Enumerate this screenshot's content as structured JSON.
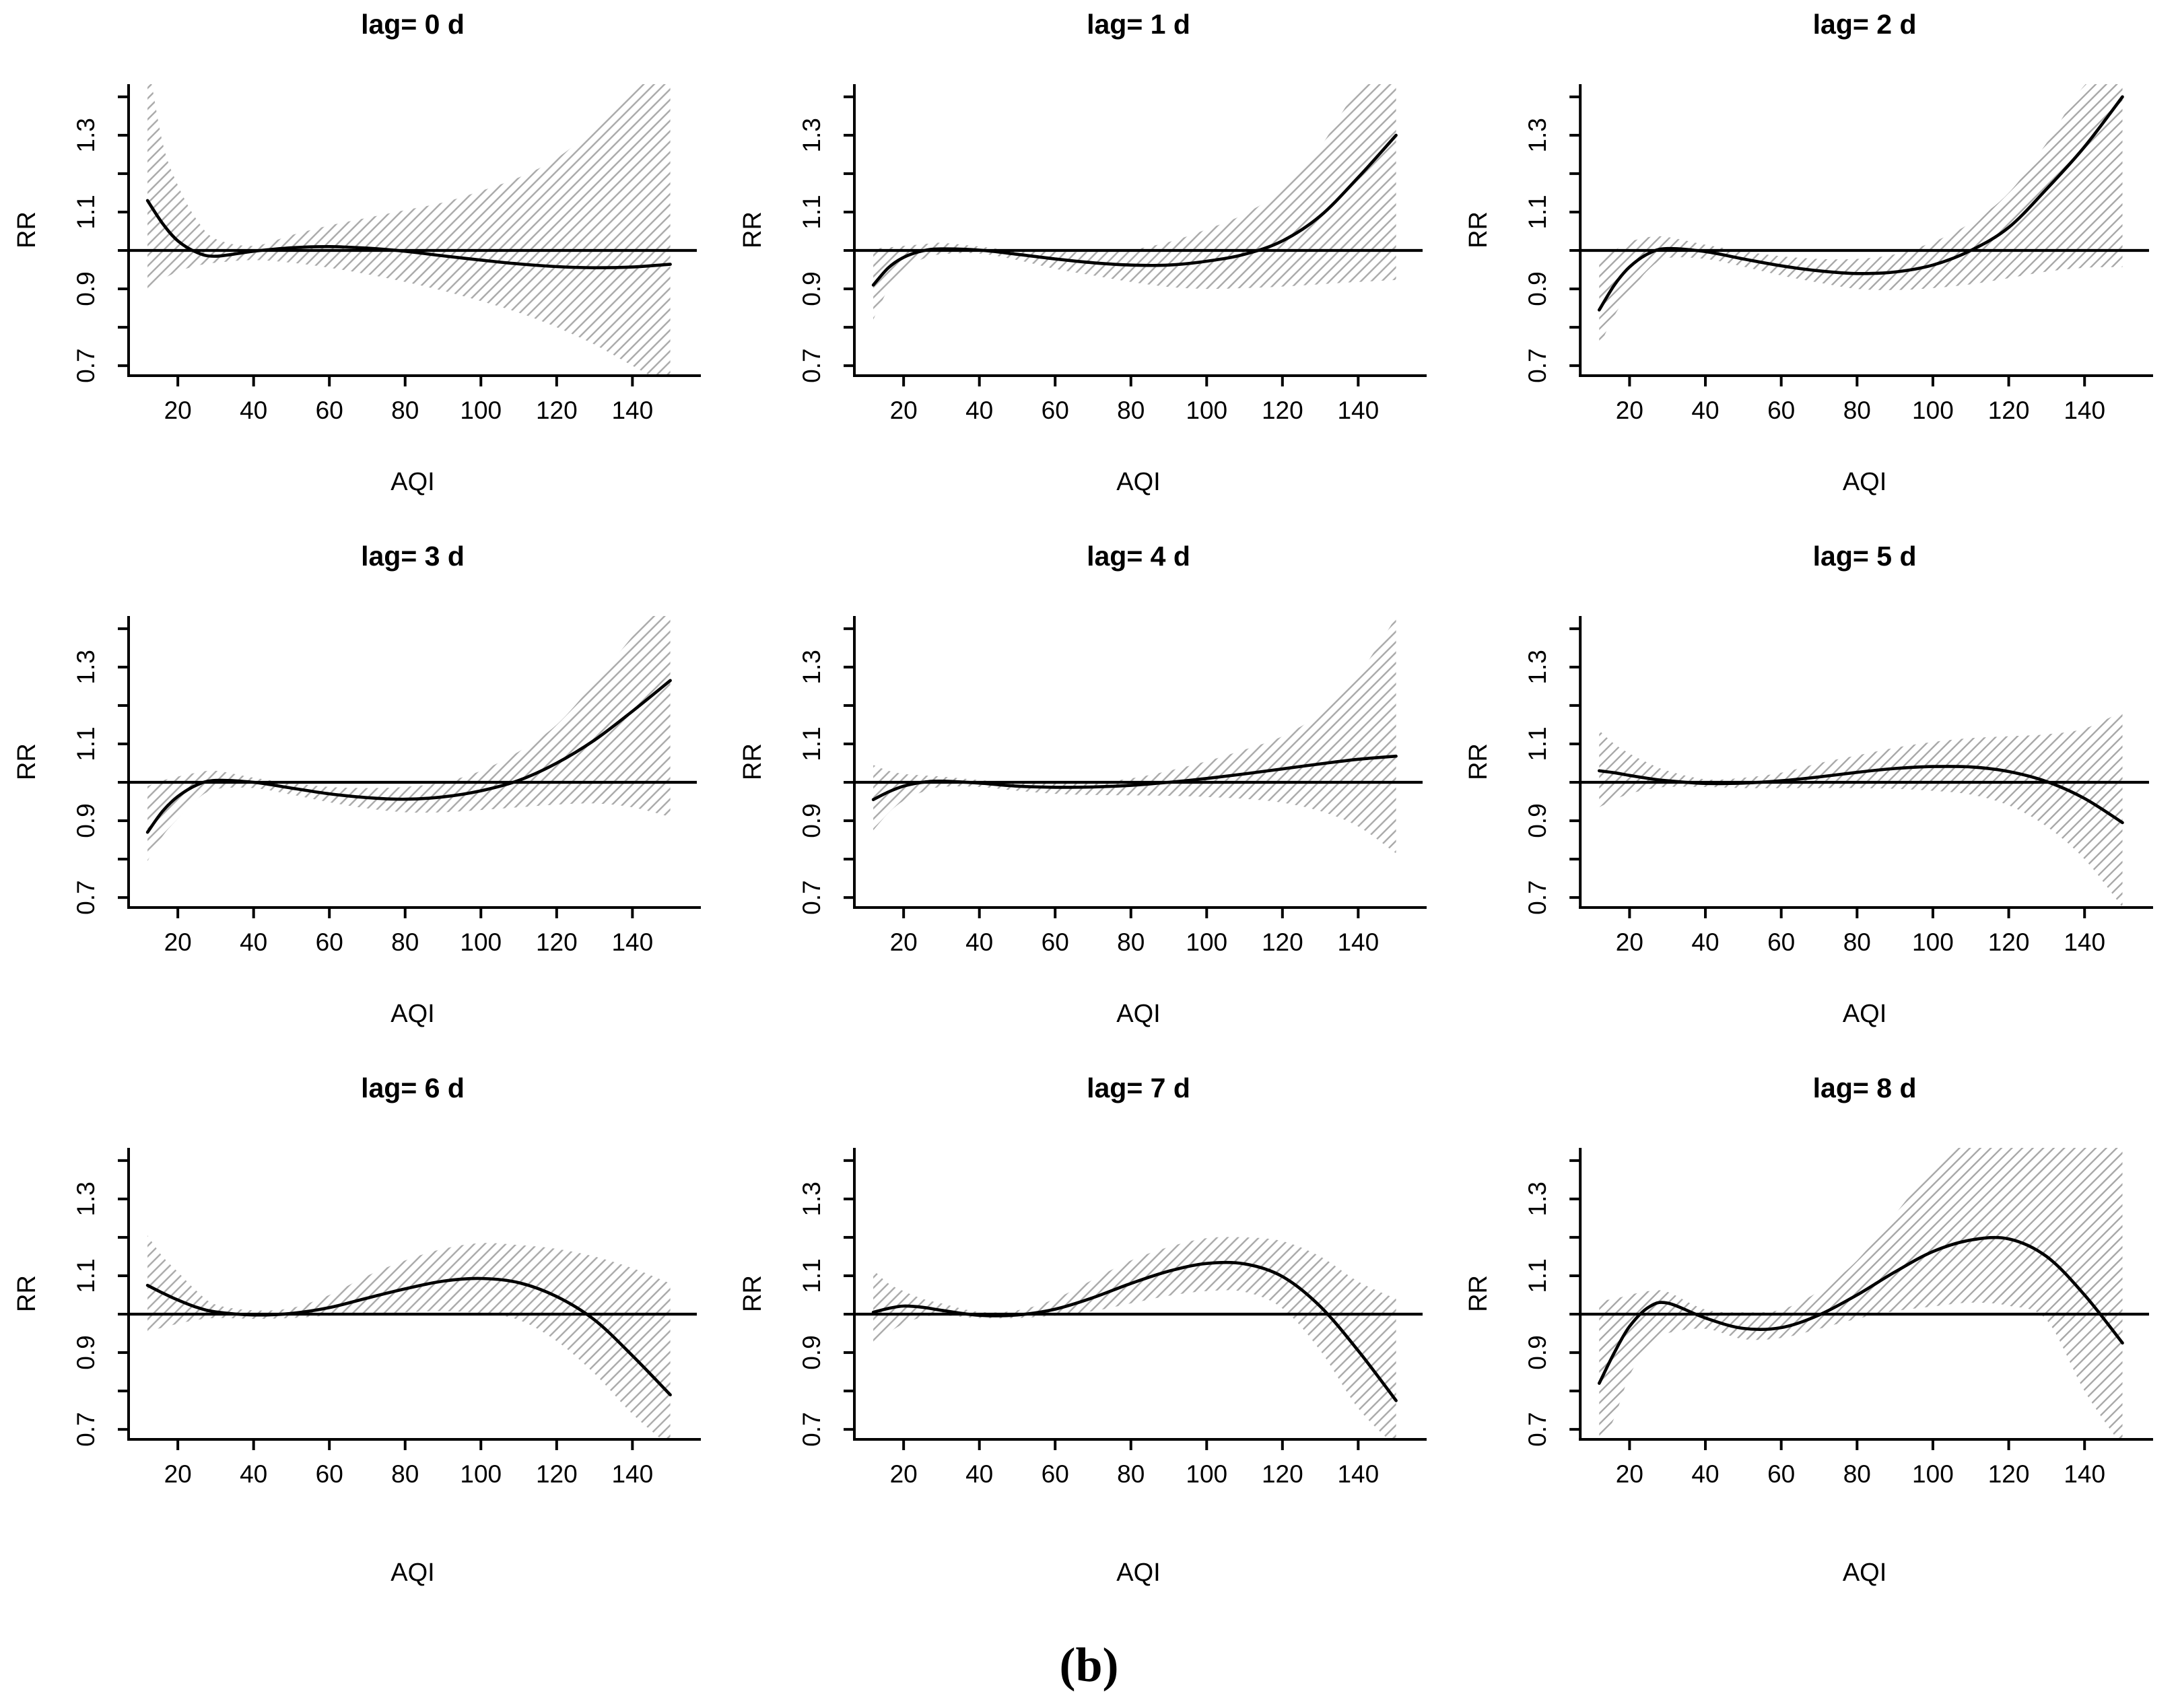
{
  "figure": {
    "caption": "(b)"
  },
  "axes": {
    "xlabel": "AQI",
    "ylabel": "RR",
    "xlim": [
      7,
      157
    ],
    "ylim": [
      0.674,
      1.433
    ],
    "x_ticks": [
      20,
      40,
      60,
      80,
      100,
      120,
      140
    ],
    "y_ticks_labeled": [
      0.7,
      0.9,
      1.1,
      1.3
    ],
    "y_ticks_minor": [
      0.8,
      1.0,
      1.2,
      1.4
    ],
    "ref_line_y": 1.0,
    "grid": "off",
    "band_style": "diagonal-hatch",
    "band_color": "#a8a8a8",
    "line_color": "#000000"
  },
  "chart_data": [
    {
      "type": "line",
      "title": "lag= 0 d",
      "xlabel": "AQI",
      "ylabel": "RR",
      "x": [
        12,
        16,
        20,
        25,
        30,
        40,
        50,
        60,
        70,
        80,
        90,
        100,
        110,
        120,
        130,
        140,
        150
      ],
      "rr": [
        1.13,
        1.07,
        1.025,
        0.995,
        0.985,
        0.998,
        1.007,
        1.01,
        1.006,
        0.998,
        0.986,
        0.975,
        0.965,
        0.958,
        0.955,
        0.957,
        0.964
      ],
      "ci_upper": [
        1.5,
        1.28,
        1.17,
        1.08,
        1.03,
        1.012,
        1.04,
        1.065,
        1.085,
        1.105,
        1.125,
        1.155,
        1.19,
        1.24,
        1.32,
        1.42,
        1.5
      ],
      "ci_lower": [
        0.9,
        0.925,
        0.945,
        0.96,
        0.968,
        0.975,
        0.968,
        0.955,
        0.938,
        0.918,
        0.895,
        0.868,
        0.838,
        0.8,
        0.755,
        0.7,
        0.645
      ]
    },
    {
      "type": "line",
      "title": "lag= 1 d",
      "xlabel": "AQI",
      "ylabel": "RR",
      "x": [
        12,
        16,
        20,
        25,
        30,
        40,
        50,
        60,
        70,
        80,
        90,
        100,
        110,
        120,
        130,
        140,
        150
      ],
      "rr": [
        0.91,
        0.955,
        0.982,
        0.999,
        1.004,
        1.001,
        0.99,
        0.978,
        0.968,
        0.962,
        0.962,
        0.972,
        0.99,
        1.025,
        1.09,
        1.19,
        1.3
      ],
      "ci_upper": [
        1.005,
        1.008,
        1.012,
        1.016,
        1.02,
        1.01,
        0.999,
        0.996,
        0.996,
        1.002,
        1.022,
        1.055,
        1.095,
        1.16,
        1.27,
        1.42,
        1.5
      ],
      "ci_lower": [
        0.82,
        0.9,
        0.95,
        0.978,
        0.99,
        0.992,
        0.975,
        0.952,
        0.935,
        0.918,
        0.905,
        0.9,
        0.902,
        0.906,
        0.912,
        0.918,
        0.923
      ]
    },
    {
      "type": "line",
      "title": "lag= 2 d",
      "xlabel": "AQI",
      "ylabel": "RR",
      "x": [
        12,
        16,
        20,
        25,
        30,
        40,
        50,
        60,
        70,
        80,
        90,
        100,
        110,
        120,
        130,
        140,
        150
      ],
      "rr": [
        0.845,
        0.91,
        0.957,
        0.992,
        1.005,
        0.997,
        0.978,
        0.96,
        0.947,
        0.94,
        0.944,
        0.962,
        1.0,
        1.06,
        1.16,
        1.27,
        1.4
      ],
      "ci_upper": [
        0.975,
        1.0,
        1.022,
        1.035,
        1.035,
        1.015,
        0.998,
        0.985,
        0.978,
        0.978,
        0.99,
        1.022,
        1.072,
        1.15,
        1.28,
        1.43,
        1.5
      ],
      "ci_lower": [
        0.75,
        0.83,
        0.89,
        0.95,
        0.98,
        0.978,
        0.958,
        0.935,
        0.916,
        0.9,
        0.897,
        0.902,
        0.912,
        0.928,
        0.945,
        0.955,
        0.957
      ]
    },
    {
      "type": "line",
      "title": "lag= 3 d",
      "xlabel": "AQI",
      "ylabel": "RR",
      "x": [
        12,
        16,
        20,
        25,
        30,
        40,
        50,
        60,
        70,
        80,
        90,
        100,
        110,
        120,
        130,
        140,
        150
      ],
      "rr": [
        0.87,
        0.925,
        0.963,
        0.993,
        1.005,
        1.0,
        0.985,
        0.97,
        0.96,
        0.956,
        0.962,
        0.978,
        1.005,
        1.05,
        1.11,
        1.185,
        1.265
      ],
      "ci_upper": [
        0.99,
        1.005,
        1.015,
        1.025,
        1.03,
        1.012,
        0.998,
        0.988,
        0.985,
        0.988,
        1.0,
        1.03,
        1.08,
        1.15,
        1.26,
        1.38,
        1.5
      ],
      "ci_lower": [
        0.795,
        0.86,
        0.905,
        0.955,
        0.982,
        0.985,
        0.968,
        0.948,
        0.932,
        0.922,
        0.922,
        0.928,
        0.935,
        0.942,
        0.945,
        0.935,
        0.91
      ]
    },
    {
      "type": "line",
      "title": "lag= 4 d",
      "xlabel": "AQI",
      "ylabel": "RR",
      "x": [
        12,
        16,
        20,
        25,
        30,
        40,
        50,
        60,
        70,
        80,
        90,
        100,
        110,
        120,
        130,
        140,
        150
      ],
      "rr": [
        0.955,
        0.975,
        0.99,
        1.0,
        1.003,
        0.998,
        0.99,
        0.987,
        0.988,
        0.992,
        1.0,
        1.01,
        1.022,
        1.035,
        1.048,
        1.06,
        1.068
      ],
      "ci_upper": [
        1.045,
        1.03,
        1.022,
        1.018,
        1.015,
        1.006,
        0.999,
        0.997,
        1.0,
        1.01,
        1.03,
        1.055,
        1.085,
        1.12,
        1.18,
        1.28,
        1.43
      ],
      "ci_lower": [
        0.875,
        0.92,
        0.952,
        0.975,
        0.988,
        0.988,
        0.978,
        0.97,
        0.967,
        0.966,
        0.965,
        0.962,
        0.957,
        0.947,
        0.925,
        0.885,
        0.815
      ]
    },
    {
      "type": "line",
      "title": "lag= 5 d",
      "xlabel": "AQI",
      "ylabel": "RR",
      "x": [
        12,
        16,
        20,
        25,
        30,
        40,
        50,
        60,
        70,
        80,
        90,
        100,
        110,
        120,
        130,
        140,
        150
      ],
      "rr": [
        1.03,
        1.025,
        1.018,
        1.01,
        1.004,
        0.997,
        0.998,
        1.004,
        1.014,
        1.026,
        1.036,
        1.041,
        1.04,
        1.028,
        1.002,
        0.958,
        0.895
      ],
      "ci_upper": [
        1.135,
        1.1,
        1.075,
        1.05,
        1.03,
        1.008,
        1.012,
        1.025,
        1.05,
        1.07,
        1.09,
        1.105,
        1.115,
        1.12,
        1.125,
        1.14,
        1.185
      ],
      "ci_lower": [
        0.935,
        0.955,
        0.97,
        0.982,
        0.988,
        0.988,
        0.985,
        0.985,
        0.985,
        0.985,
        0.983,
        0.978,
        0.968,
        0.94,
        0.885,
        0.8,
        0.675
      ]
    },
    {
      "type": "line",
      "title": "lag= 6 d",
      "xlabel": "AQI",
      "ylabel": "RR",
      "x": [
        12,
        16,
        20,
        25,
        30,
        40,
        50,
        60,
        70,
        80,
        90,
        100,
        110,
        120,
        130,
        140,
        150
      ],
      "rr": [
        1.075,
        1.055,
        1.037,
        1.018,
        1.006,
        0.998,
        1.002,
        1.017,
        1.042,
        1.066,
        1.086,
        1.093,
        1.082,
        1.046,
        0.985,
        0.892,
        0.79
      ],
      "ci_upper": [
        1.205,
        1.15,
        1.11,
        1.06,
        1.025,
        1.01,
        1.016,
        1.05,
        1.1,
        1.14,
        1.17,
        1.185,
        1.18,
        1.17,
        1.15,
        1.12,
        1.08
      ],
      "ci_lower": [
        0.955,
        0.965,
        0.975,
        0.985,
        0.99,
        0.988,
        0.99,
        0.996,
        1.0,
        1.005,
        1.008,
        1.002,
        0.985,
        0.93,
        0.845,
        0.74,
        0.655
      ]
    },
    {
      "type": "line",
      "title": "lag= 7 d",
      "xlabel": "AQI",
      "ylabel": "RR",
      "x": [
        12,
        16,
        20,
        25,
        30,
        40,
        50,
        60,
        70,
        80,
        90,
        100,
        110,
        120,
        130,
        140,
        150
      ],
      "rr": [
        1.005,
        1.015,
        1.021,
        1.018,
        1.01,
        0.997,
        0.998,
        1.013,
        1.043,
        1.08,
        1.112,
        1.132,
        1.131,
        1.098,
        1.02,
        0.905,
        0.775
      ],
      "ci_upper": [
        1.115,
        1.08,
        1.06,
        1.04,
        1.028,
        1.006,
        1.01,
        1.04,
        1.09,
        1.14,
        1.175,
        1.198,
        1.2,
        1.19,
        1.15,
        1.085,
        1.04
      ],
      "ci_lower": [
        0.91,
        0.95,
        0.975,
        0.992,
        0.997,
        0.99,
        0.99,
        0.996,
        1.008,
        1.028,
        1.048,
        1.06,
        1.058,
        1.015,
        0.905,
        0.755,
        0.655
      ]
    },
    {
      "type": "line",
      "title": "lag= 8 d",
      "xlabel": "AQI",
      "ylabel": "RR",
      "x": [
        12,
        16,
        20,
        25,
        30,
        40,
        50,
        60,
        70,
        80,
        90,
        100,
        110,
        120,
        130,
        140,
        150
      ],
      "rr": [
        0.82,
        0.9,
        0.968,
        1.018,
        1.029,
        0.99,
        0.963,
        0.965,
        0.998,
        1.05,
        1.11,
        1.163,
        1.193,
        1.196,
        1.15,
        1.05,
        0.925
      ],
      "ci_upper": [
        1.035,
        1.04,
        1.05,
        1.06,
        1.058,
        1.012,
        1.005,
        1.012,
        1.06,
        1.14,
        1.26,
        1.38,
        1.46,
        1.5,
        1.5,
        1.5,
        1.5
      ],
      "ci_lower": [
        0.655,
        0.73,
        0.84,
        0.915,
        0.95,
        0.962,
        0.935,
        0.938,
        0.962,
        0.988,
        1.008,
        1.02,
        1.03,
        1.022,
        0.985,
        0.8,
        0.655
      ]
    }
  ]
}
